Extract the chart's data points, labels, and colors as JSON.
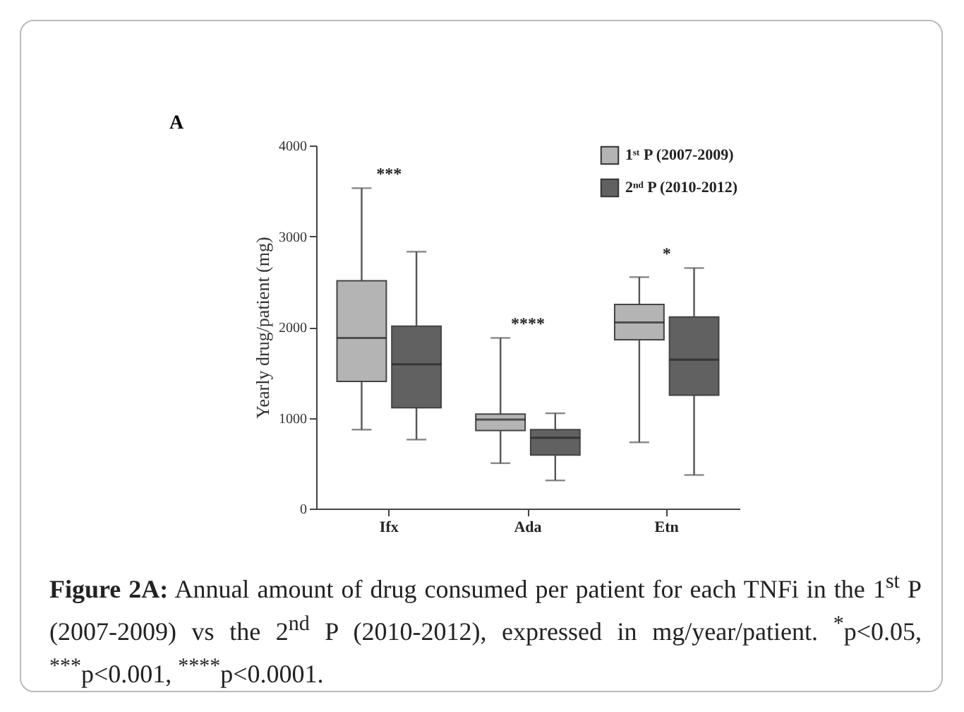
{
  "chart_data": {
    "type": "box",
    "title": "A",
    "ylabel": "Yearly drug/patient (mg)",
    "categories": [
      "Ifx",
      "Ada",
      "Etn"
    ],
    "series": [
      {
        "name": "1ˢᵗ P (2007-2009)",
        "color": "#b4b4b4",
        "boxes": [
          {
            "low": 870,
            "q1": 1400,
            "median": 1880,
            "q3": 2510,
            "high": 3530
          },
          {
            "low": 500,
            "q1": 860,
            "median": 980,
            "q3": 1040,
            "high": 1880
          },
          {
            "low": 730,
            "q1": 1860,
            "median": 2050,
            "q3": 2250,
            "high": 2550
          }
        ]
      },
      {
        "name": "2ⁿᵈ P (2010-2012)",
        "color": "#616161",
        "boxes": [
          {
            "low": 760,
            "q1": 1110,
            "median": 1590,
            "q3": 2010,
            "high": 2830
          },
          {
            "low": 310,
            "q1": 590,
            "median": 780,
            "q3": 870,
            "high": 1050
          },
          {
            "low": 370,
            "q1": 1250,
            "median": 1640,
            "q3": 2110,
            "high": 2650
          }
        ]
      }
    ],
    "ylim": [
      0,
      4000
    ],
    "yticks": [
      0,
      1000,
      2000,
      3000,
      4000
    ],
    "grid": false,
    "legend": "top right",
    "annotations": [
      "***",
      "****",
      "*",
      "Figure 2A: Annual amount of drug consumed per patient for each TNFi in the 1$^{st}$ P (2007-2009) vs the 2$^{nd}$ P (2010-2012), expressed in mg/year/patient. $^{*}$p<0.05, $^{***}$p<0.001, $^{****}$p<0.0001."
    ]
  }
}
